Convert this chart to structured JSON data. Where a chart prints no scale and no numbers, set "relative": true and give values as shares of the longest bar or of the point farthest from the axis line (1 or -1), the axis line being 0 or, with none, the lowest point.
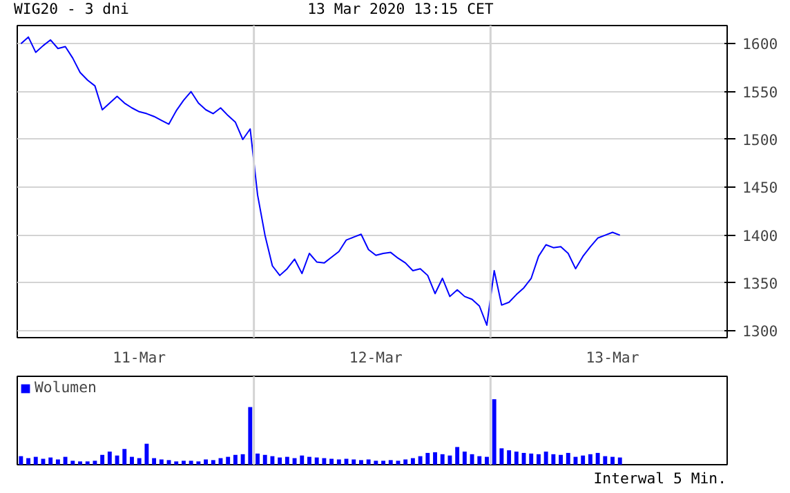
{
  "chart_data": [
    {
      "type": "line",
      "title": "WIG20 - 3 dni",
      "annotations": [
        "13 Mar 2020 13:15 CET"
      ],
      "categories": [
        null,
        null,
        null,
        null,
        null,
        null,
        null,
        null,
        null,
        null,
        null,
        null,
        null,
        null,
        null,
        null,
        "11-Mar",
        null,
        null,
        null,
        null,
        null,
        null,
        null,
        null,
        null,
        null,
        null,
        null,
        null,
        null,
        null,
        null,
        null,
        null,
        null,
        null,
        null,
        null,
        null,
        null,
        null,
        null,
        null,
        null,
        null,
        null,
        null,
        "12-Mar",
        null,
        null,
        null,
        null,
        null,
        null,
        null,
        null,
        null,
        null,
        null,
        null,
        null,
        null,
        null,
        null,
        null,
        null,
        null,
        null,
        null,
        null,
        null,
        null,
        null,
        null,
        null,
        null,
        null,
        null,
        null,
        "13-Mar",
        null,
        null,
        null,
        null,
        null,
        null,
        null,
        null,
        null,
        null,
        null,
        null,
        null,
        null,
        null
      ],
      "series": [
        {
          "color": "#0000ff",
          "values": [
            1600,
            1607,
            1591,
            1598,
            1604,
            1595,
            1597,
            1585,
            1570,
            1562,
            1556,
            1531,
            1538,
            1545,
            1538,
            1533,
            1529,
            1527,
            1524,
            1520,
            1516,
            1530,
            1541,
            1550,
            1538,
            1531,
            1527,
            1533,
            1525,
            1518,
            1500,
            1511,
            1442,
            1400,
            1368,
            1358,
            1365,
            1375,
            1360,
            1381,
            1372,
            1371,
            1377,
            1383,
            1395,
            1398,
            1401,
            1385,
            1379,
            1381,
            1382,
            1376,
            1371,
            1363,
            1365,
            1358,
            1339,
            1355,
            1336,
            1343,
            1336,
            1333,
            1326,
            1306,
            1363,
            1327,
            1330,
            1338,
            1345,
            1355,
            1378,
            1390,
            1387,
            1388,
            1381,
            1365,
            1378,
            1388,
            1397,
            1400,
            1403,
            1400,
            null,
            null,
            null,
            null,
            null,
            null,
            null,
            null,
            null,
            null,
            null,
            null,
            null,
            null
          ]
        }
      ],
      "ylim": [
        1293,
        1619
      ],
      "yticks": [
        1300,
        1350,
        1400,
        1450,
        1500,
        1550,
        1600
      ],
      "grid": "y"
    },
    {
      "type": "bar",
      "relative": true,
      "legend": "top left",
      "tick_labels": false,
      "annotations": [
        "Interwal 5 Min."
      ],
      "categories": [
        null,
        null,
        null,
        null,
        null,
        null,
        null,
        null,
        null,
        null,
        null,
        null,
        null,
        null,
        null,
        null,
        null,
        null,
        null,
        null,
        null,
        null,
        null,
        null,
        null,
        null,
        null,
        null,
        null,
        null,
        null,
        null,
        null,
        null,
        null,
        null,
        null,
        null,
        null,
        null,
        null,
        null,
        null,
        null,
        null,
        null,
        null,
        null,
        null,
        null,
        null,
        null,
        null,
        null,
        null,
        null,
        null,
        null,
        null,
        null,
        null,
        null,
        null,
        null,
        null,
        null,
        null,
        null,
        null,
        null,
        null,
        null,
        null,
        null,
        null,
        null,
        null,
        null,
        null,
        null,
        null,
        null,
        null,
        null,
        null,
        null,
        null,
        null,
        null,
        null,
        null,
        null,
        null,
        null,
        null,
        null
      ],
      "series": [
        {
          "name": "Wolumen",
          "color": "#0000ff",
          "values": [
            0.13,
            0.1,
            0.12,
            0.09,
            0.11,
            0.08,
            0.12,
            0.06,
            0.05,
            0.05,
            0.06,
            0.15,
            0.2,
            0.14,
            0.24,
            0.12,
            0.1,
            0.32,
            0.1,
            0.08,
            0.07,
            0.05,
            0.06,
            0.06,
            0.05,
            0.08,
            0.07,
            0.1,
            0.12,
            0.15,
            0.16,
            0.88,
            0.17,
            0.15,
            0.13,
            0.11,
            0.12,
            0.1,
            0.14,
            0.12,
            0.11,
            0.1,
            0.09,
            0.08,
            0.09,
            0.08,
            0.07,
            0.08,
            0.06,
            0.06,
            0.07,
            0.06,
            0.08,
            0.1,
            0.13,
            0.18,
            0.19,
            0.16,
            0.14,
            0.27,
            0.2,
            0.16,
            0.13,
            0.12,
            1.0,
            0.25,
            0.22,
            0.2,
            0.18,
            0.17,
            0.16,
            0.2,
            0.16,
            0.15,
            0.18,
            0.12,
            0.14,
            0.16,
            0.18,
            0.13,
            0.12,
            0.11,
            null,
            null,
            null,
            null,
            null,
            null,
            null,
            null,
            null,
            null,
            null,
            null,
            null,
            null
          ]
        }
      ]
    }
  ]
}
